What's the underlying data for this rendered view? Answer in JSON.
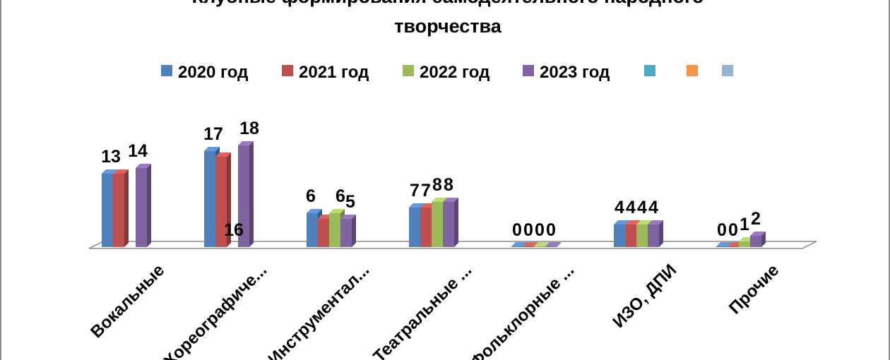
{
  "chart_data": {
    "type": "bar",
    "title": "Клубные формирования самодеятельного народного творчества",
    "title_lines": [
      "Клубные формирования самодеятельного народного",
      "творчества"
    ],
    "categories": [
      "Вокальные",
      "Хореографиче...",
      "Инструментал...",
      "Театральные ...",
      "Фольклорные ...",
      "ИЗО, ДПИ",
      "Прочие"
    ],
    "series": [
      {
        "name": "2020 год",
        "color": "#4F81BD",
        "values": [
          13,
          17,
          6,
          7,
          0,
          4,
          0
        ]
      },
      {
        "name": "2021 год",
        "color": "#C0504D",
        "values": [
          13,
          16,
          5,
          7,
          0,
          4,
          0
        ]
      },
      {
        "name": "2022 год",
        "color": "#9BBB59",
        "values": [
          null,
          null,
          6,
          8,
          0,
          4,
          1
        ]
      },
      {
        "name": "2023 год",
        "color": "#8064A2",
        "values": [
          14,
          18,
          5,
          8,
          0,
          4,
          2
        ]
      }
    ],
    "value_labels": [
      [
        "13",
        "",
        "",
        "14"
      ],
      [
        "17",
        "",
        "16",
        "18"
      ],
      [
        "6",
        "",
        "6",
        "5"
      ],
      [
        "7",
        "7",
        "8",
        "8"
      ],
      [
        "0",
        "0",
        "0",
        "0"
      ],
      [
        "4",
        "4",
        "4",
        "4"
      ],
      [
        "0",
        "0",
        "1",
        "2"
      ]
    ],
    "extra_legend": [
      {
        "name": "",
        "color": "#4BACC6"
      },
      {
        "name": "",
        "color": "#F79646"
      },
      {
        "name": "",
        "color": "#95B3D7"
      }
    ],
    "ylim": [
      0,
      20
    ],
    "legend_position": "top",
    "grid": false,
    "style": "3d-clustered-column"
  }
}
